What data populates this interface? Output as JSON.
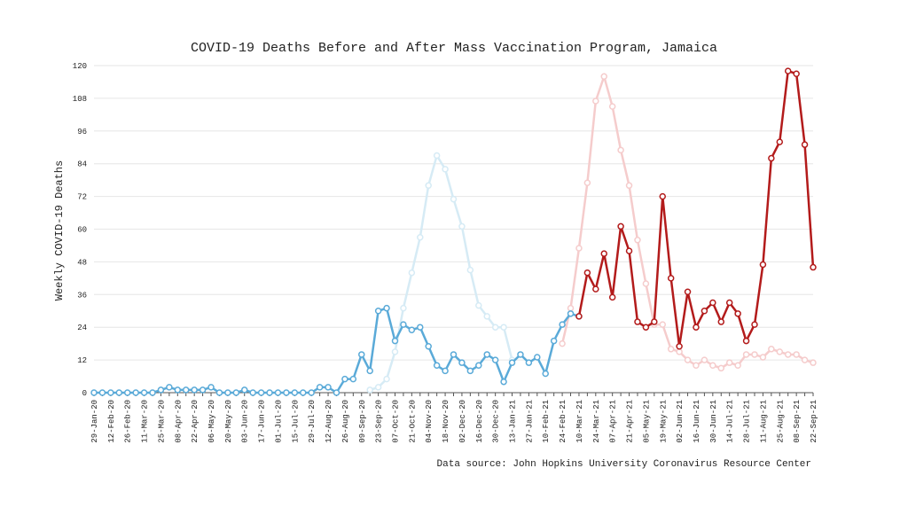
{
  "chart_data": {
    "type": "line",
    "title": "COVID-19 Deaths Before and After Mass Vaccination Program, Jamaica",
    "ylabel": "Weekly COVID-19 Deaths",
    "source": "Data source: John Hopkins University Coronavirus Resource Center",
    "categories": [
      "29-Jan-20",
      null,
      "12-Feb-20",
      null,
      "26-Feb-20",
      null,
      "11-Mar-20",
      null,
      "25-Mar-20",
      null,
      "08-Apr-20",
      null,
      "22-Apr-20",
      null,
      "06-May-20",
      null,
      "20-May-20",
      null,
      "03-Jun-20",
      null,
      "17-Jun-20",
      null,
      "01-Jul-20",
      null,
      "15-Jul-20",
      null,
      "29-Jul-20",
      null,
      "12-Aug-20",
      null,
      "26-Aug-20",
      null,
      "09-Sep-20",
      null,
      "23-Sep-20",
      null,
      "07-Oct-20",
      null,
      "21-Oct-20",
      null,
      "04-Nov-20",
      null,
      "18-Nov-20",
      null,
      "02-Dec-20",
      null,
      "16-Dec-20",
      null,
      "30-Dec-20",
      null,
      "13-Jan-21",
      null,
      "27-Jan-21",
      null,
      "10-Feb-21",
      null,
      "24-Feb-21",
      null,
      "10-Mar-21",
      null,
      "24-Mar-21",
      null,
      "07-Apr-21",
      null,
      "21-Apr-21",
      null,
      "05-May-21",
      null,
      "19-May-21",
      null,
      "02-Jun-21",
      null,
      "16-Jun-21",
      null,
      "30-Jun-21",
      null,
      "14-Jul-21",
      null,
      "28-Jul-21",
      null,
      "11-Aug-21",
      null,
      "25-Aug-21",
      null,
      "08-Sep-21",
      null,
      "22-Sep-21"
    ],
    "series": [
      {
        "color": "#d6ebf5",
        "values": [
          null,
          null,
          null,
          null,
          null,
          null,
          null,
          null,
          null,
          null,
          null,
          null,
          null,
          null,
          null,
          null,
          null,
          null,
          null,
          null,
          null,
          null,
          null,
          null,
          null,
          null,
          null,
          null,
          null,
          null,
          null,
          null,
          null,
          1,
          2,
          5,
          15,
          31,
          44,
          57,
          76,
          87,
          82,
          71,
          61,
          45,
          32,
          28,
          24,
          24,
          12,
          null,
          null,
          null,
          null,
          null,
          null,
          null,
          null,
          null,
          null,
          null,
          null,
          null,
          null,
          null,
          null,
          null,
          null,
          null,
          null,
          null,
          null,
          null,
          null,
          null,
          null,
          null,
          null,
          null,
          null,
          null,
          null,
          null,
          null,
          null,
          null
        ]
      },
      {
        "color": "#f5cccc",
        "values": [
          null,
          null,
          null,
          null,
          null,
          null,
          null,
          null,
          null,
          null,
          null,
          null,
          null,
          null,
          null,
          null,
          null,
          null,
          null,
          null,
          null,
          null,
          null,
          null,
          null,
          null,
          null,
          null,
          null,
          null,
          null,
          null,
          null,
          null,
          null,
          null,
          null,
          null,
          null,
          null,
          null,
          null,
          null,
          null,
          null,
          null,
          null,
          null,
          null,
          null,
          null,
          null,
          null,
          null,
          null,
          null,
          18,
          31,
          53,
          77,
          107,
          116,
          105,
          89,
          76,
          56,
          40,
          25,
          25,
          16,
          15,
          12,
          10,
          12,
          10,
          9,
          11,
          10,
          14,
          14,
          13,
          16,
          15,
          14,
          14,
          12,
          11
        ]
      },
      {
        "color": "#5aaad8",
        "values": [
          0,
          0,
          0,
          0,
          0,
          0,
          0,
          0,
          1,
          2,
          1,
          1,
          1,
          1,
          2,
          0,
          0,
          0,
          1,
          0,
          0,
          0,
          0,
          0,
          0,
          0,
          0,
          2,
          2,
          0,
          5,
          5,
          14,
          8,
          30,
          31,
          19,
          25,
          23,
          24,
          17,
          10,
          8,
          14,
          11,
          8,
          10,
          14,
          12,
          4,
          11,
          14,
          11,
          13,
          7,
          19,
          25,
          29,
          28,
          null,
          null,
          null,
          null,
          null,
          null,
          null,
          null,
          null,
          null,
          null,
          null,
          null,
          null,
          null,
          null,
          null,
          null,
          null,
          null,
          null,
          null,
          null,
          null,
          null,
          null,
          null,
          null
        ]
      },
      {
        "color": "#b31b1b",
        "values": [
          null,
          null,
          null,
          null,
          null,
          null,
          null,
          null,
          null,
          null,
          null,
          null,
          null,
          null,
          null,
          null,
          null,
          null,
          null,
          null,
          null,
          null,
          null,
          null,
          null,
          null,
          null,
          null,
          null,
          null,
          null,
          null,
          null,
          null,
          null,
          null,
          null,
          null,
          null,
          null,
          null,
          null,
          null,
          null,
          null,
          null,
          null,
          null,
          null,
          null,
          null,
          null,
          null,
          null,
          null,
          null,
          null,
          null,
          28,
          44,
          38,
          51,
          35,
          61,
          52,
          26,
          24,
          26,
          72,
          42,
          17,
          37,
          24,
          30,
          33,
          26,
          33,
          29,
          19,
          25,
          47,
          86,
          92,
          118,
          117,
          91,
          46
        ]
      }
    ],
    "ylim": [
      0,
      120
    ],
    "yticks": [
      0,
      12,
      24,
      36,
      48,
      60,
      72,
      84,
      96,
      108,
      120
    ],
    "grid": true
  }
}
